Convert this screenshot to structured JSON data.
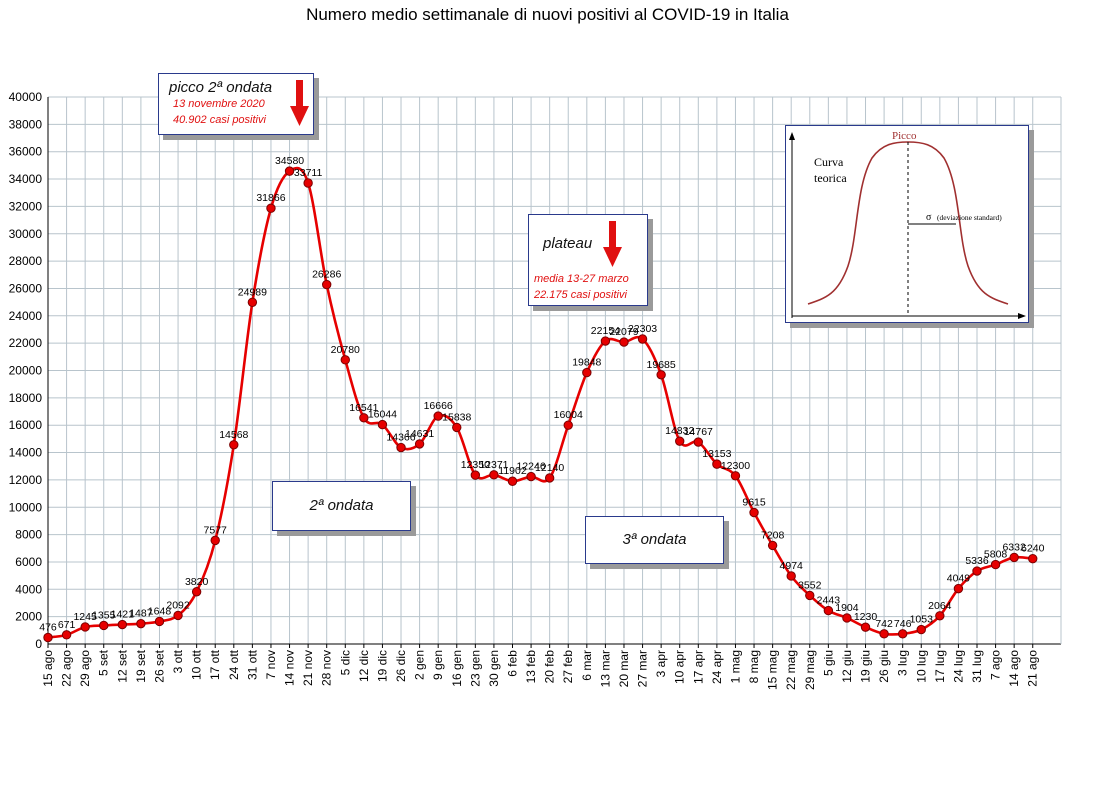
{
  "chart_data": {
    "type": "line",
    "title": "Numero medio settimanale di nuovi positivi al COVID-19 in Italia",
    "xlabel": "",
    "ylabel": "",
    "ylim": [
      0,
      40000
    ],
    "ytick_step": 2000,
    "grid": true,
    "categories": [
      "15 ago",
      "22 ago",
      "29 ago",
      "5 set",
      "12 set",
      "19 set",
      "26 set",
      "3 ott",
      "10 ott",
      "17 ott",
      "24 ott",
      "31 ott",
      "7 nov",
      "14 nov",
      "21 nov",
      "28 nov",
      "5 dic",
      "12 dic",
      "19 dic",
      "26 dic",
      "2 gen",
      "9 gen",
      "16 gen",
      "23 gen",
      "30 gen",
      "6 feb",
      "13 feb",
      "20 feb",
      "27 feb",
      "6 mar",
      "13 mar",
      "20 mar",
      "27 mar",
      "3 apr",
      "10 apr",
      "17 apr",
      "24 apr",
      "1 mag",
      "8 mag",
      "15 mag",
      "22 mag",
      "29 mag",
      "5 giu",
      "12 giu",
      "19 giu",
      "26 giu",
      "3 lug",
      "10 lug",
      "17 lug",
      "24 lug",
      "31 lug",
      "7 ago",
      "14 ago",
      "21 ago"
    ],
    "series": [
      {
        "color": "#e60000",
        "values": [
          476,
          671,
          1245,
          1355,
          1421,
          1487,
          1648,
          2092,
          3820,
          7577,
          14568,
          24989,
          31866,
          34580,
          33711,
          26286,
          20780,
          16541,
          16044,
          14366,
          14631,
          16666,
          15838,
          12350,
          12371,
          11902,
          12246,
          12140,
          16004,
          19848,
          22154,
          22079,
          22303,
          19685,
          14832,
          14767,
          13153,
          12300,
          9615,
          7208,
          4974,
          3552,
          2443,
          1904,
          1230,
          742,
          746,
          1053,
          2064,
          4049,
          5336,
          5808,
          6332,
          6240
        ]
      }
    ],
    "annotations": {
      "peak_box": {
        "title": "picco 2ª ondata",
        "line1": "13 novembre 2020",
        "line2": "40.902 casi positivi"
      },
      "plateau_box": {
        "title": "plateau",
        "line1": "media 13-27 marzo",
        "line2": "22.175 casi positivi"
      },
      "wave2_label": "2ª ondata",
      "wave3_label": "3ª ondata",
      "inset": {
        "peak_label": "Picco",
        "curve_label_1": "Curva",
        "curve_label_2": "teorica",
        "sigma_label": "σ",
        "sigma_text": "(deviazione standard)"
      }
    },
    "colors": {
      "line": "#e60000",
      "marker_fill": "#e60000",
      "marker_stroke": "#7a0000",
      "box_border": "#2a3a8c",
      "annotation_red": "#e01010",
      "inset_curve": "#a03030"
    }
  }
}
